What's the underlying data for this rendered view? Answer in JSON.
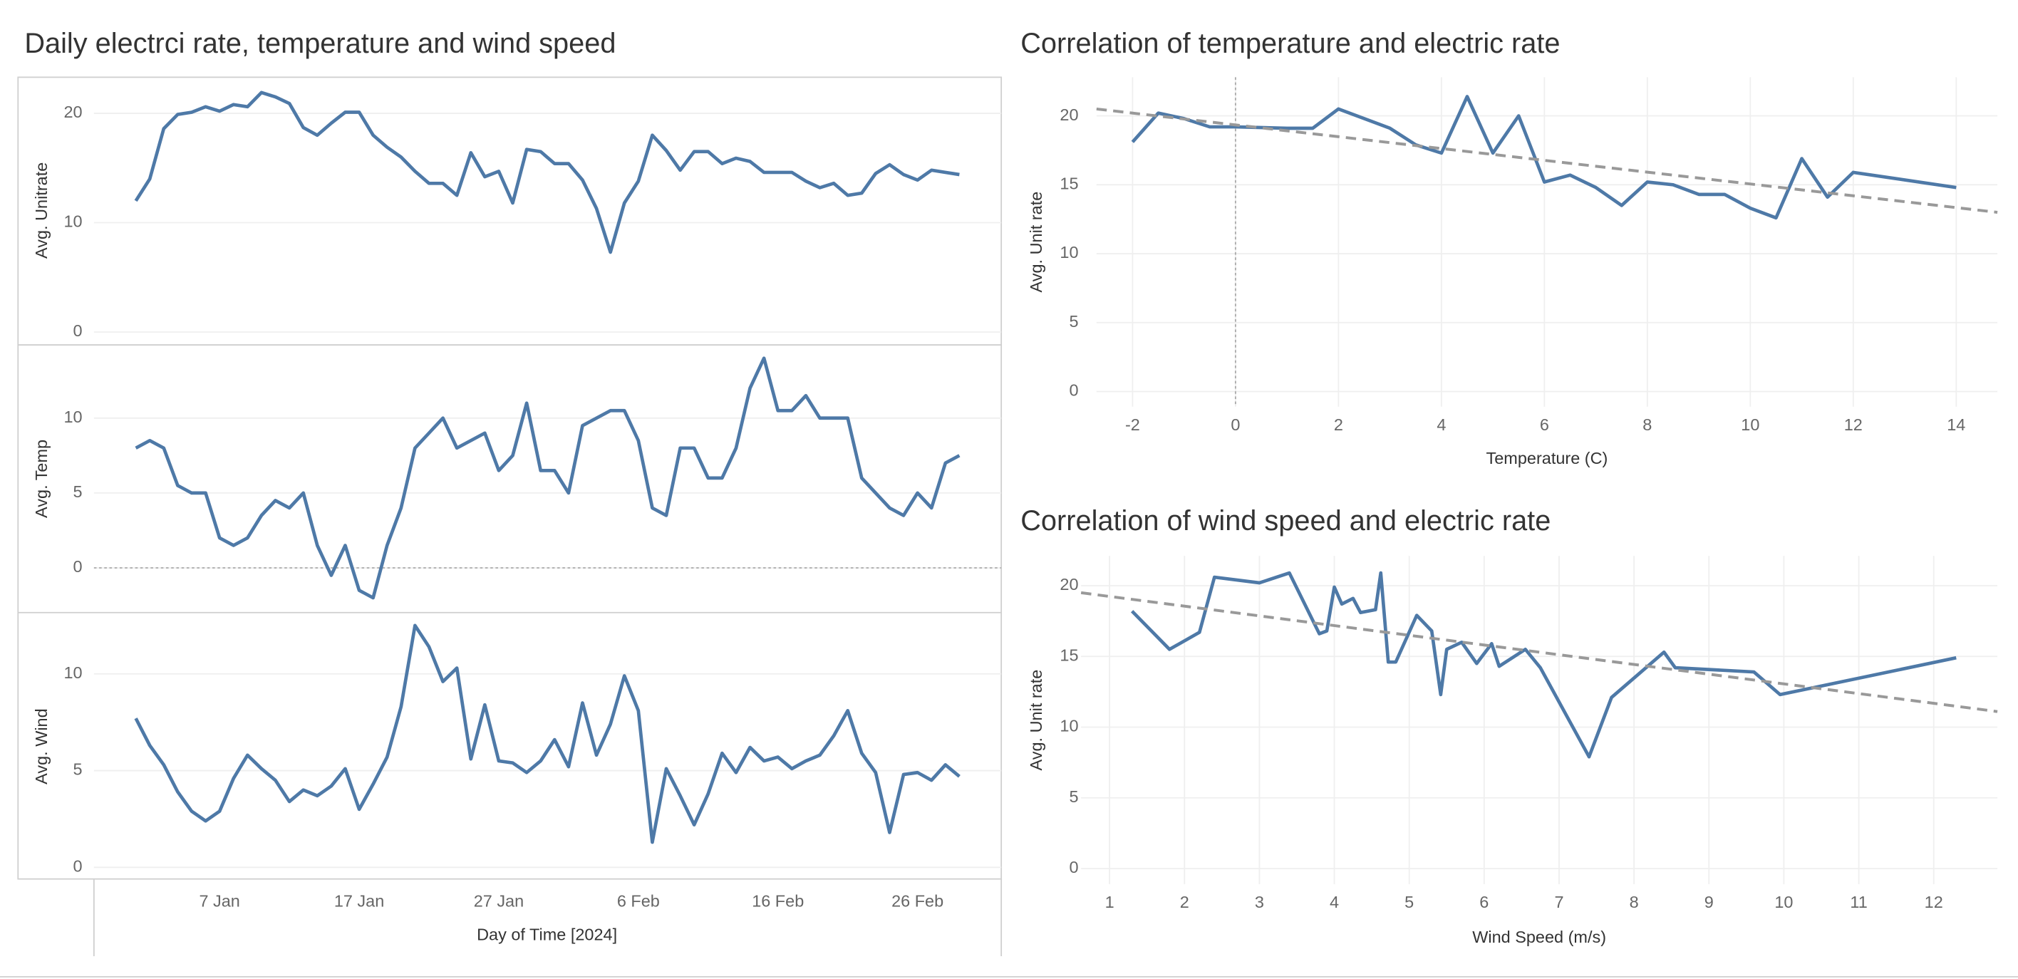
{
  "chart_data": [
    {
      "type": "line",
      "title": "Daily electrci rate, temperature and wind speed",
      "x_label": "Day of Time [2024]",
      "x": [
        "2024-01-01",
        "2024-01-02",
        "2024-01-03",
        "2024-01-04",
        "2024-01-05",
        "2024-01-06",
        "2024-01-07",
        "2024-01-08",
        "2024-01-09",
        "2024-01-10",
        "2024-01-11",
        "2024-01-12",
        "2024-01-13",
        "2024-01-14",
        "2024-01-15",
        "2024-01-16",
        "2024-01-17",
        "2024-01-18",
        "2024-01-19",
        "2024-01-20",
        "2024-01-21",
        "2024-01-22",
        "2024-01-23",
        "2024-01-24",
        "2024-01-25",
        "2024-01-26",
        "2024-01-27",
        "2024-01-28",
        "2024-01-29",
        "2024-01-30",
        "2024-01-31",
        "2024-02-01",
        "2024-02-02",
        "2024-02-03",
        "2024-02-04",
        "2024-02-05",
        "2024-02-06",
        "2024-02-07",
        "2024-02-08",
        "2024-02-09",
        "2024-02-10",
        "2024-02-11",
        "2024-02-12",
        "2024-02-13",
        "2024-02-14",
        "2024-02-15",
        "2024-02-16",
        "2024-02-17",
        "2024-02-18",
        "2024-02-19",
        "2024-02-20",
        "2024-02-21",
        "2024-02-22",
        "2024-02-23",
        "2024-02-24",
        "2024-02-25",
        "2024-02-26",
        "2024-02-27",
        "2024-02-28",
        "2024-02-29"
      ],
      "xlim": [
        "2023-12-29",
        "2024-03-03"
      ],
      "xticks": [
        {
          "value": "2024-01-07",
          "label": "7 Jan"
        },
        {
          "value": "2024-01-17",
          "label": "17 Jan"
        },
        {
          "value": "2024-01-27",
          "label": "27 Jan"
        },
        {
          "value": "2024-02-06",
          "label": "6 Feb"
        },
        {
          "value": "2024-02-16",
          "label": "16 Feb"
        },
        {
          "value": "2024-02-26",
          "label": "26 Feb"
        }
      ],
      "panels": [
        {
          "y_label": "Avg. Unitrate",
          "color": "#4e79a7",
          "ylim": [
            -1.06,
            23.3
          ],
          "yticks": [
            0,
            10,
            20
          ],
          "grid": true,
          "values": [
            12,
            14,
            18.6,
            19.9,
            20.1,
            20.6,
            20.2,
            20.8,
            20.6,
            21.9,
            21.5,
            20.9,
            18.7,
            18,
            19.1,
            20.1,
            20.1,
            18,
            16.9,
            16,
            14.7,
            13.6,
            13.6,
            12.5,
            16.4,
            14.2,
            14.7,
            11.8,
            16.7,
            16.5,
            15.4,
            15.4,
            13.9,
            11.3,
            7.3,
            11.8,
            13.8,
            18,
            16.6,
            14.8,
            16.5,
            16.5,
            15.4,
            15.9,
            15.6,
            14.6,
            14.6,
            14.6,
            13.8,
            13.2,
            13.6,
            12.5,
            12.7,
            14.5,
            15.3,
            14.4,
            13.9,
            14.8,
            14.6,
            14.4
          ]
        },
        {
          "y_label": "Avg. Temp",
          "color": "#4e79a7",
          "ylim": [
            -2.9,
            14.8
          ],
          "yticks": [
            0,
            5,
            10
          ],
          "grid": true,
          "zero_line": true,
          "values": [
            8,
            8.5,
            8,
            5.5,
            5,
            5,
            2,
            1.5,
            2,
            3.5,
            4.5,
            4,
            5,
            1.5,
            -0.5,
            1.5,
            -1.5,
            -2,
            1.5,
            4,
            8,
            9,
            10,
            8,
            8.5,
            9,
            6.5,
            7.5,
            11,
            6.5,
            6.5,
            5,
            9.5,
            10,
            10.5,
            10.5,
            8.5,
            4,
            3.5,
            8,
            8,
            6,
            6,
            8,
            12,
            14,
            10.5,
            10.5,
            11.5,
            10,
            10,
            10,
            6,
            5,
            4,
            3.5,
            5,
            4,
            7,
            7.5
          ]
        },
        {
          "y_label": "Avg. Wind",
          "color": "#4e79a7",
          "ylim": [
            -0.6,
            13.1
          ],
          "yticks": [
            0,
            5,
            10
          ],
          "grid": true,
          "values": [
            7.7,
            6.3,
            5.3,
            3.9,
            2.9,
            2.4,
            2.9,
            4.6,
            5.8,
            5.1,
            4.5,
            3.4,
            4,
            3.7,
            4.2,
            5.1,
            3,
            4.3,
            5.7,
            8.3,
            12.5,
            11.4,
            9.6,
            10.3,
            5.6,
            8.4,
            5.5,
            5.4,
            4.9,
            5.5,
            6.6,
            5.2,
            8.5,
            5.8,
            7.4,
            9.9,
            8.1,
            1.3,
            5.1,
            3.7,
            2.2,
            3.8,
            5.9,
            4.9,
            6.2,
            5.5,
            5.7,
            5.1,
            5.5,
            5.8,
            6.8,
            8.1,
            5.9,
            4.9,
            1.8,
            4.8,
            4.9,
            4.5,
            5.3,
            4.7
          ]
        }
      ]
    },
    {
      "type": "line",
      "title": "Correlation of  temperature and electric rate",
      "x_label": "Temperature (C)",
      "y_label": "Avg. Unit rate",
      "color": "#4e79a7",
      "grid": true,
      "zero_line": true,
      "x": [
        -2,
        -1.5,
        -1,
        -0.5,
        0,
        1,
        1.5,
        2,
        3,
        3.5,
        4,
        4.5,
        5,
        5.5,
        6,
        6.5,
        7,
        7.5,
        8,
        8.5,
        9,
        9.5,
        10,
        10.5,
        11,
        11.5,
        12,
        14
      ],
      "values": [
        18.1,
        20.2,
        19.8,
        19.2,
        19.2,
        19.1,
        19.1,
        20.5,
        19.1,
        17.9,
        17.3,
        21.4,
        17.3,
        20,
        15.2,
        15.7,
        14.8,
        13.5,
        15.2,
        15,
        14.3,
        14.3,
        13.3,
        12.6,
        16.9,
        14.1,
        15.9,
        14.8
      ],
      "trend": {
        "color": "#999999",
        "x": [
          -2.7,
          14.8
        ],
        "values": [
          20.5,
          13
        ]
      },
      "xlim": [
        -2.7,
        14.8
      ],
      "ylim": [
        -1.1,
        22.8
      ],
      "xticks": [
        -2,
        0,
        2,
        4,
        6,
        8,
        10,
        12,
        14
      ],
      "yticks": [
        0,
        5,
        10,
        15,
        20
      ]
    },
    {
      "type": "line",
      "title": "Correlation of wind speed and electric rate",
      "x_label": "Wind Speed (m/s)",
      "y_label": "Avg. Unit rate",
      "color": "#4e79a7",
      "grid": true,
      "x": [
        1.3,
        1.8,
        2.2,
        2.4,
        3,
        3.4,
        3.8,
        3.9,
        4,
        4.1,
        4.25,
        4.35,
        4.55,
        4.62,
        4.72,
        4.82,
        5.1,
        5.3,
        5.42,
        5.5,
        5.7,
        5.9,
        6.1,
        6.2,
        6.55,
        6.75,
        7.4,
        7.7,
        8.05,
        8.4,
        8.55,
        9.6,
        9.95,
        12.3
      ],
      "values": [
        18.2,
        15.5,
        16.7,
        20.6,
        20.2,
        20.9,
        16.6,
        16.8,
        19.9,
        18.7,
        19.1,
        18.1,
        18.3,
        20.9,
        14.6,
        14.6,
        17.9,
        16.8,
        12.3,
        15.5,
        16,
        14.5,
        15.9,
        14.3,
        15.5,
        14.2,
        7.9,
        12.1,
        13.7,
        15.3,
        14.2,
        13.9,
        12.3,
        14.9
      ],
      "trend": {
        "color": "#999999",
        "x": [
          0.62,
          12.85
        ],
        "values": [
          19.5,
          11.1
        ]
      },
      "xlim": [
        0.62,
        12.85
      ],
      "ylim": [
        -1.1,
        22.1
      ],
      "xticks": [
        1,
        2,
        3,
        4,
        5,
        6,
        7,
        8,
        9,
        10,
        11,
        12
      ],
      "yticks": [
        0,
        5,
        10,
        15,
        20
      ]
    }
  ]
}
